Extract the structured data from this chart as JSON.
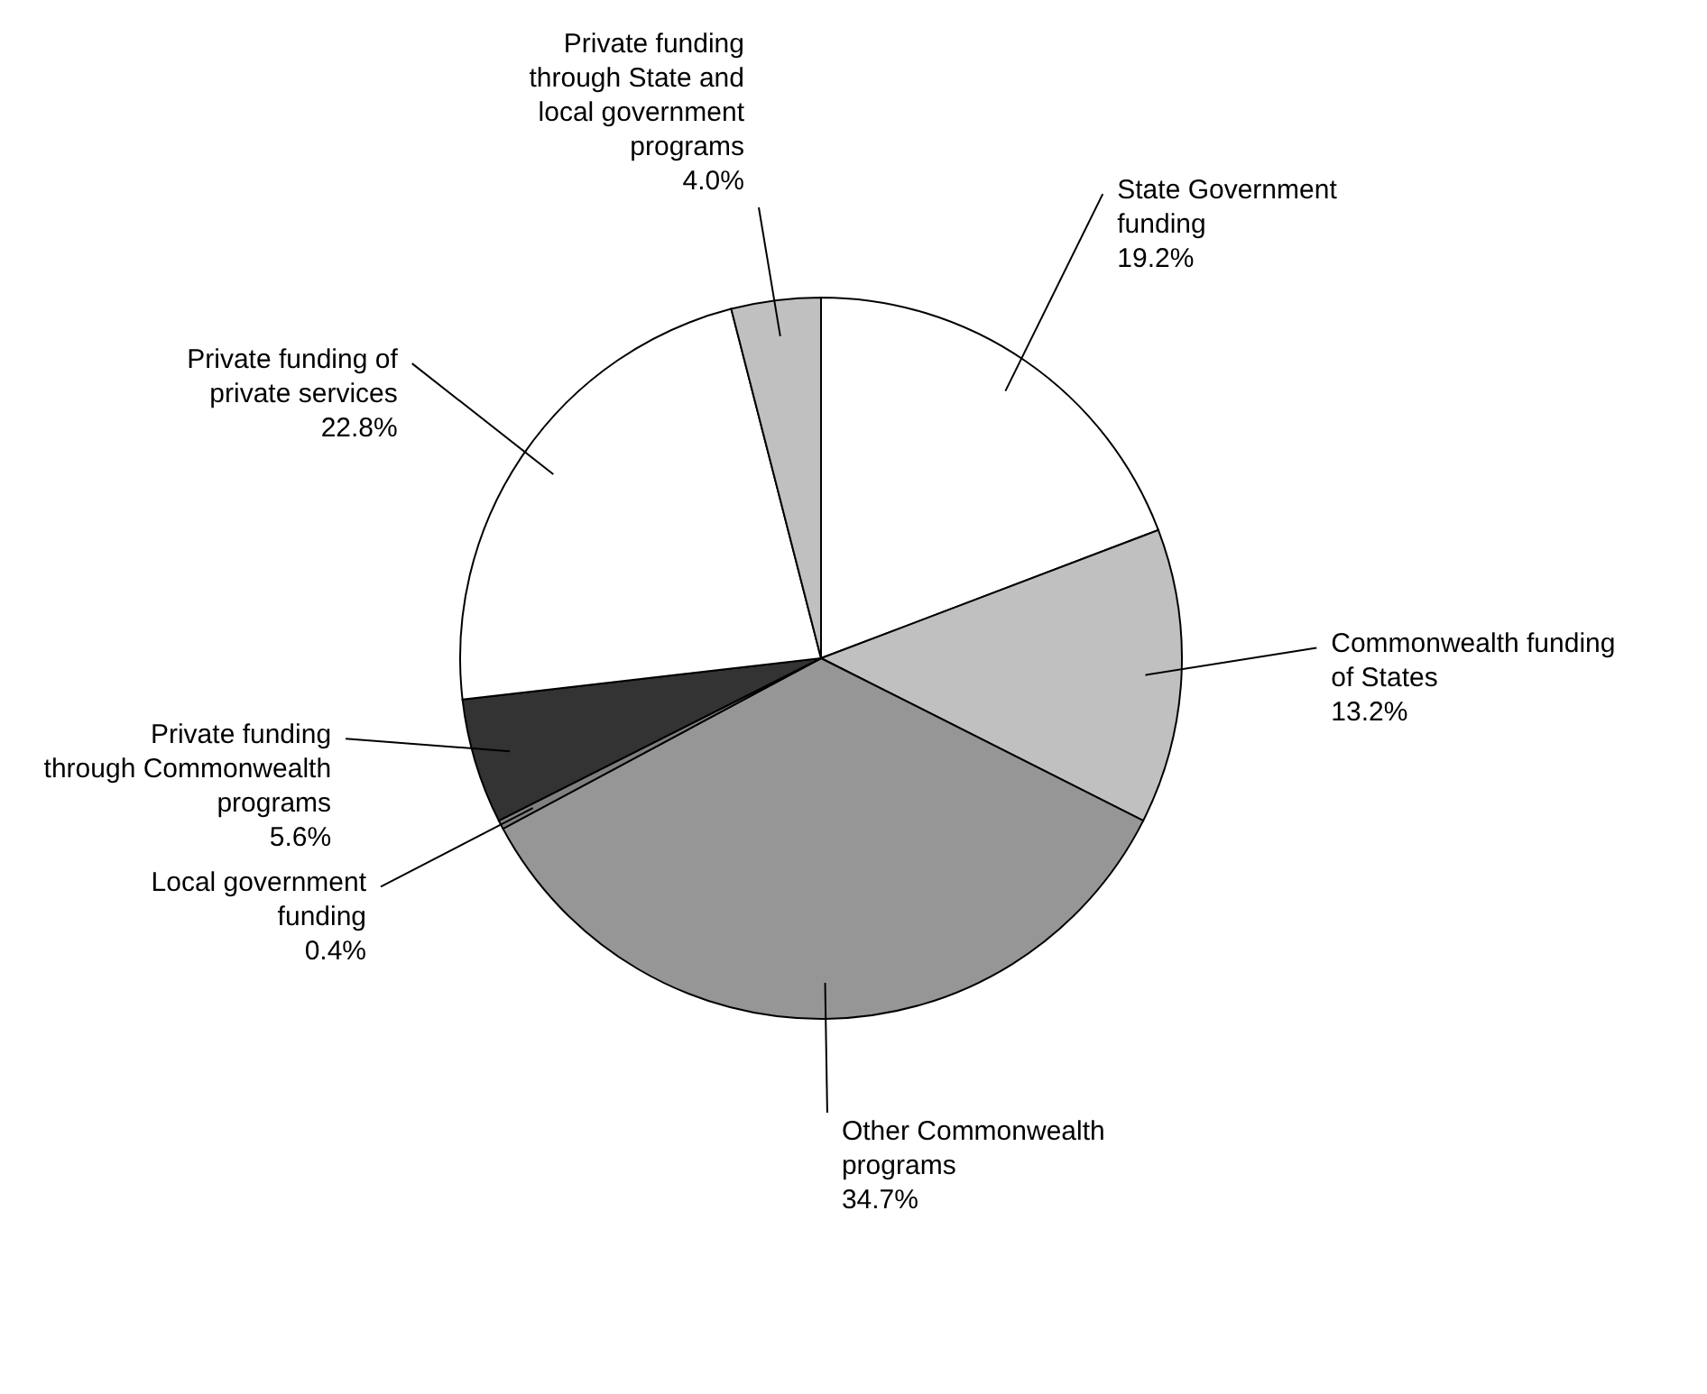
{
  "chart_data": {
    "type": "pie",
    "categories": [
      "State Government funding",
      "Commonwealth funding of States",
      "Other Commonwealth programs",
      "Local government funding",
      "Private funding through Commonwealth programs",
      "Private funding of private services",
      "Private funding through State and local government programs"
    ],
    "values": [
      19.2,
      13.2,
      34.7,
      0.4,
      5.6,
      22.8,
      4.0
    ],
    "value_labels": [
      "19.2%",
      "13.2%",
      "34.7%",
      "0.4%",
      "5.6%",
      "22.8%",
      "4.0%"
    ],
    "colors": [
      "#ffffff",
      "#c0c0c0",
      "#969696",
      "#808080",
      "#333333",
      "#ffffff",
      "#c0c0c0"
    ]
  }
}
